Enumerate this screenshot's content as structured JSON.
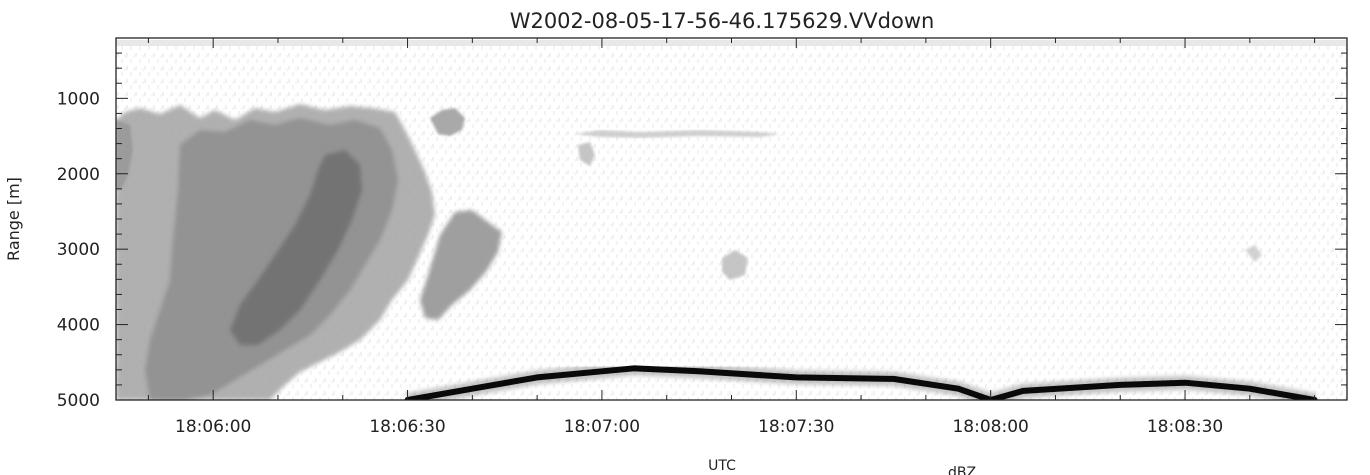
{
  "chart_data": {
    "type": "heatmap",
    "title": "W2002-08-05-17-56-46.175629.VVdown",
    "xlabel": "UTC",
    "ylabel": "Range [m]",
    "colorbar_label": "dBZ",
    "x_ticks": [
      "18:06:00",
      "18:06:30",
      "18:07:00",
      "18:07:30",
      "18:08:00",
      "18:08:30"
    ],
    "x_range": [
      "18:05:45",
      "18:08:55"
    ],
    "y_ticks": [
      1000,
      2000,
      3000,
      4000,
      5000
    ],
    "y_range": [
      5000,
      200
    ],
    "y_inverted": true,
    "grid": false,
    "colors": {
      "background": "#ffffff",
      "noise": "#b8b8b8",
      "cloud_light": "#a8a8a8",
      "cloud_mid": "#8c8c8c",
      "cloud_dark": "#6c6c6c",
      "ground_echo": "#0a0a0a"
    },
    "cloud_features": [
      {
        "name": "cloud mass",
        "time_range": [
          "18:05:45",
          "18:06:37"
        ],
        "range_m": [
          1050,
          5000
        ]
      },
      {
        "name": "cloud fragment",
        "time_range": [
          "18:06:34",
          "18:06:48"
        ],
        "range_m": [
          2600,
          4000
        ]
      },
      {
        "name": "cloud fragment",
        "time_range": [
          "18:06:38",
          "18:06:43"
        ],
        "range_m": [
          1000,
          1400
        ]
      },
      {
        "name": "weak echo",
        "time_range": [
          "18:06:56",
          "18:07:28"
        ],
        "range_m": [
          1350,
          1500
        ]
      },
      {
        "name": "weak echo",
        "time_range": [
          "18:07:16",
          "18:07:20"
        ],
        "range_m": [
          2900,
          3200
        ]
      }
    ],
    "ground_echo": {
      "time": [
        "18:06:30",
        "18:06:40",
        "18:06:50",
        "18:07:00",
        "18:07:05",
        "18:07:15",
        "18:07:30",
        "18:07:45",
        "18:07:55",
        "18:08:00",
        "18:08:05",
        "18:08:20",
        "18:08:30",
        "18:08:40",
        "18:08:50"
      ],
      "range_m": [
        5000,
        4850,
        4700,
        4620,
        4580,
        4620,
        4700,
        4720,
        4850,
        5000,
        4880,
        4800,
        4770,
        4850,
        5000
      ]
    }
  }
}
